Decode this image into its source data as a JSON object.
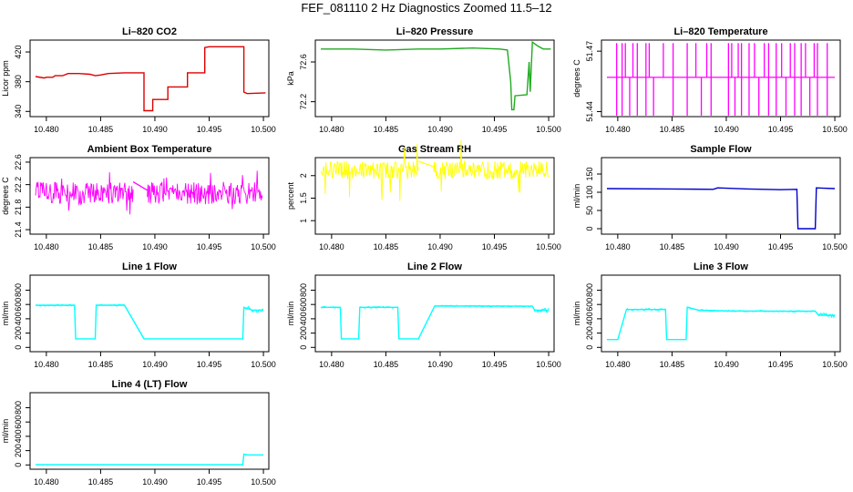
{
  "title": "FEF_081110  2 Hz Diagnostics Zoomed 11.5–12",
  "chart_data": [
    {
      "id": "co2",
      "type": "line",
      "title": "Li–820 CO2",
      "ylabel": "Licor ppm",
      "color": "#dd0000",
      "xlim": [
        10.4785,
        10.5005
      ],
      "ylim": [
        333,
        436
      ],
      "xticks": [
        10.48,
        10.485,
        10.49,
        10.495,
        10.5
      ],
      "yticks": [
        340,
        380,
        420
      ],
      "series": [
        {
          "values": [
            [
              10.479,
              387
            ],
            [
              10.4798,
              385
            ],
            [
              10.48,
              386
            ],
            [
              10.4806,
              386
            ],
            [
              10.4808,
              388
            ],
            [
              10.4815,
              388
            ],
            [
              10.482,
              391
            ],
            [
              10.483,
              391
            ],
            [
              10.484,
              390
            ],
            [
              10.4845,
              388
            ],
            [
              10.485,
              389
            ],
            [
              10.4857,
              391
            ],
            [
              10.4872,
              392
            ],
            [
              10.4872,
              392
            ],
            [
              10.4874,
              392
            ],
            [
              10.489,
              392
            ],
            [
              10.489,
              341
            ],
            [
              10.4898,
              341
            ],
            [
              10.4898,
              356
            ],
            [
              10.4912,
              356
            ],
            [
              10.4912,
              373
            ],
            [
              10.493,
              373
            ],
            [
              10.493,
              392
            ],
            [
              10.4946,
              392
            ],
            [
              10.4946,
              426
            ],
            [
              10.495,
              427
            ],
            [
              10.4982,
              427
            ],
            [
              10.4982,
              366
            ],
            [
              10.4985,
              364
            ],
            [
              10.5002,
              365
            ]
          ]
        }
      ]
    },
    {
      "id": "pressure",
      "type": "line",
      "title": "Li–820 Pressure",
      "ylabel": "kPa",
      "color": "#22aa22",
      "xlim": [
        10.4785,
        10.5005
      ],
      "ylim": [
        72.05,
        72.82
      ],
      "xticks": [
        10.48,
        10.485,
        10.49,
        10.495,
        10.5
      ],
      "yticks": [
        72.2,
        72.6
      ],
      "series": [
        {
          "values": [
            [
              10.479,
              72.73
            ],
            [
              10.482,
              72.73
            ],
            [
              10.485,
              72.72
            ],
            [
              10.488,
              72.73
            ],
            [
              10.49,
              72.73
            ],
            [
              10.493,
              72.74
            ],
            [
              10.4955,
              72.73
            ],
            [
              10.4962,
              72.72
            ],
            [
              10.4965,
              72.4
            ],
            [
              10.4966,
              72.12
            ],
            [
              10.4968,
              72.12
            ],
            [
              10.4969,
              72.26
            ],
            [
              10.498,
              72.27
            ],
            [
              10.4982,
              72.6
            ],
            [
              10.4983,
              72.3
            ],
            [
              10.4985,
              72.8
            ],
            [
              10.499,
              72.76
            ],
            [
              10.4995,
              72.73
            ],
            [
              10.5002,
              72.73
            ]
          ]
        }
      ]
    },
    {
      "id": "temperature",
      "type": "line",
      "title": "Li–820 Temperature",
      "ylabel": "degrees C",
      "color": "#ff00ff",
      "xlim": [
        10.4785,
        10.5005
      ],
      "ylim": [
        51.4375,
        51.4755
      ],
      "xticks": [
        10.48,
        10.485,
        10.49,
        10.495,
        10.5
      ],
      "yticks": [
        51.44,
        51.47
      ],
      "baseline": 51.457,
      "spike_high": 51.474,
      "spike_low": 51.438,
      "spike_times": [
        10.4799,
        10.4801,
        10.4804,
        10.4807,
        10.4811,
        10.4814,
        10.4818,
        10.4821,
        10.4826,
        10.4829,
        10.4833,
        10.4842,
        10.4851,
        10.4858,
        10.4864,
        10.4872,
        10.4877,
        10.4882,
        10.4886,
        10.4891,
        10.4902,
        10.4905,
        10.4908,
        10.4911,
        10.4914,
        10.4917,
        10.4921,
        10.4926,
        10.493,
        10.4935,
        10.4939,
        10.4943,
        10.4946,
        10.4951,
        10.4955,
        10.4959,
        10.4963,
        10.4966,
        10.4969,
        10.4973,
        10.4977,
        10.4981,
        10.4984,
        10.4988,
        10.4993
      ]
    },
    {
      "id": "box_temp",
      "type": "line",
      "title": "Ambient Box Temperature",
      "ylabel": "degrees C",
      "color": "#ff00ff",
      "xlim": [
        10.4785,
        10.5005
      ],
      "ylim": [
        21.32,
        22.68
      ],
      "xticks": [
        10.48,
        10.485,
        10.49,
        10.495,
        10.5
      ],
      "yticks": [
        21.4,
        21.8,
        22.2,
        22.6
      ],
      "noise": {
        "segments": [
          [
            10.479,
            10.488
          ],
          [
            10.4893,
            10.4999
          ]
        ],
        "center": 22.05,
        "band": 0.2,
        "spike": 0.4,
        "bridge_to": 22.1
      }
    },
    {
      "id": "rh",
      "type": "line",
      "title": "Gas Stream RH",
      "ylabel": "percent",
      "color": "#ffff00",
      "xlim": [
        10.4785,
        10.5005
      ],
      "ylim": [
        0.7,
        2.4
      ],
      "xticks": [
        10.48,
        10.485,
        10.49,
        10.495,
        10.5
      ],
      "yticks": [
        1.0,
        1.5,
        2.0
      ],
      "noise": {
        "segments": [
          [
            10.479,
            10.488
          ],
          [
            10.4894,
            10.5
          ]
        ],
        "center": 2.12,
        "band": 0.2,
        "spike": 0.7,
        "bridge_to": 2.2
      }
    },
    {
      "id": "sample_flow",
      "type": "line",
      "title": "Sample Flow",
      "ylabel": "ml/min",
      "color": "#0000cc",
      "xlim": [
        10.4785,
        10.5005
      ],
      "ylim": [
        -15,
        195
      ],
      "xticks": [
        10.48,
        10.485,
        10.49,
        10.495,
        10.5
      ],
      "yticks": [
        0,
        50,
        100,
        150
      ],
      "series": [
        {
          "values": [
            [
              10.479,
              110
            ],
            [
              10.485,
              109
            ],
            [
              10.4888,
              108
            ],
            [
              10.4892,
              112
            ],
            [
              10.492,
              109
            ],
            [
              10.495,
              107
            ],
            [
              10.4965,
              108
            ],
            [
              10.4966,
              0
            ],
            [
              10.4982,
              0
            ],
            [
              10.4983,
              112
            ],
            [
              10.499,
              111
            ],
            [
              10.5,
              110
            ]
          ]
        }
      ]
    },
    {
      "id": "line1",
      "type": "line",
      "title": "Line 1 Flow",
      "ylabel": "ml/min",
      "color": "#00ffff",
      "xlim": [
        10.4785,
        10.5005
      ],
      "ylim": [
        -60,
        1010
      ],
      "xticks": [
        10.48,
        10.485,
        10.49,
        10.495,
        10.5
      ],
      "yticks": [
        0,
        200,
        400,
        600,
        800
      ],
      "series": [
        {
          "values": [
            [
              10.479,
              590
            ],
            [
              10.4826,
              590
            ],
            [
              10.4827,
              120
            ],
            [
              10.4845,
              120
            ],
            [
              10.4846,
              590
            ],
            [
              10.4872,
              590
            ],
            [
              10.489,
              120
            ],
            [
              10.494,
              120
            ],
            [
              10.4981,
              120
            ],
            [
              10.4982,
              560
            ],
            [
              10.499,
              520
            ],
            [
              10.5,
              520
            ]
          ]
        }
      ],
      "ripple": [
        [
          10.479,
          10.4826,
          12
        ],
        [
          10.4846,
          10.4872,
          12
        ],
        [
          10.4983,
          10.5,
          35
        ]
      ]
    },
    {
      "id": "line2",
      "type": "line",
      "title": "Line 2 Flow",
      "ylabel": "ml/min",
      "color": "#00ffff",
      "xlim": [
        10.4785,
        10.5005
      ],
      "ylim": [
        -60,
        1010
      ],
      "xticks": [
        10.48,
        10.485,
        10.49,
        10.495,
        10.5
      ],
      "yticks": [
        0,
        200,
        400,
        600,
        800
      ],
      "series": [
        {
          "values": [
            [
              10.479,
              560
            ],
            [
              10.4808,
              560
            ],
            [
              10.4809,
              120
            ],
            [
              10.4825,
              120
            ],
            [
              10.4826,
              560
            ],
            [
              10.4861,
              560
            ],
            [
              10.4862,
              120
            ],
            [
              10.488,
              120
            ],
            [
              10.4895,
              580
            ],
            [
              10.4985,
              575
            ],
            [
              10.4987,
              520
            ],
            [
              10.5,
              520
            ]
          ]
        }
      ],
      "ripple": [
        [
          10.479,
          10.4808,
          12
        ],
        [
          10.4826,
          10.4861,
          12
        ],
        [
          10.4895,
          10.4985,
          10
        ],
        [
          10.4987,
          10.5,
          30
        ]
      ]
    },
    {
      "id": "line3",
      "type": "line",
      "title": "Line 3 Flow",
      "ylabel": "ml/min",
      "color": "#00ffff",
      "xlim": [
        10.4785,
        10.5005
      ],
      "ylim": [
        -60,
        1010
      ],
      "xticks": [
        10.48,
        10.485,
        10.49,
        10.495,
        10.5
      ],
      "yticks": [
        0,
        200,
        400,
        600,
        800
      ],
      "series": [
        {
          "values": [
            [
              10.479,
              110
            ],
            [
              10.48,
              110
            ],
            [
              10.4808,
              530
            ],
            [
              10.4844,
              530
            ],
            [
              10.4845,
              110
            ],
            [
              10.4863,
              110
            ],
            [
              10.4864,
              560
            ],
            [
              10.4875,
              520
            ],
            [
              10.49,
              510
            ],
            [
              10.495,
              505
            ],
            [
              10.4982,
              505
            ],
            [
              10.4985,
              450
            ],
            [
              10.5,
              450
            ]
          ]
        }
      ],
      "ripple": [
        [
          10.4808,
          10.4844,
          14
        ],
        [
          10.4864,
          10.4982,
          10
        ],
        [
          10.4985,
          10.5,
          30
        ]
      ]
    },
    {
      "id": "line4",
      "type": "line",
      "title": "Line 4 (LT) Flow",
      "ylabel": "ml/min",
      "color": "#00ffff",
      "xlim": [
        10.4785,
        10.5005
      ],
      "ylim": [
        -60,
        1010
      ],
      "xticks": [
        10.48,
        10.485,
        10.49,
        10.495,
        10.5
      ],
      "yticks": [
        0,
        200,
        400,
        600,
        800
      ],
      "series": [
        {
          "values": [
            [
              10.479,
              5
            ],
            [
              10.488,
              5
            ],
            [
              10.49,
              5
            ],
            [
              10.4981,
              5
            ],
            [
              10.4982,
              150
            ],
            [
              10.4986,
              140
            ],
            [
              10.5,
              140
            ]
          ]
        }
      ]
    }
  ]
}
